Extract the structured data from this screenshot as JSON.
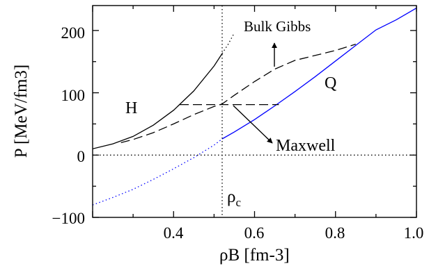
{
  "chart_data": {
    "type": "line",
    "xlabel": "ρB [fm-3]",
    "ylabel": "P [MeV/fm3]",
    "xlim": [
      0.2,
      1.0
    ],
    "ylim": [
      -100,
      240
    ],
    "x_ticks": [
      0.4,
      0.6,
      0.8,
      1.0
    ],
    "x_tick_labels": [
      "0.4",
      "0.6",
      "0.8",
      "1.0"
    ],
    "y_ticks": [
      -100,
      0,
      100,
      200
    ],
    "y_tick_labels": [
      "−100",
      "0",
      "100",
      "200"
    ],
    "grid": false,
    "series": [
      {
        "style": "solid",
        "color": "#000000",
        "x": [
          0.2,
          0.25,
          0.3,
          0.35,
          0.4,
          0.45,
          0.5,
          0.52
        ],
        "y": [
          10,
          18,
          30,
          48,
          72,
          103,
          143,
          163
        ]
      },
      {
        "style": "dotted",
        "color": "#000000",
        "x": [
          0.52,
          0.535,
          0.55
        ],
        "y": [
          163,
          178,
          196
        ]
      },
      {
        "style": "solid",
        "color": "#0000ff",
        "x": [
          0.52,
          0.55,
          0.6,
          0.65,
          0.7,
          0.75,
          0.8,
          0.85,
          0.9,
          0.95,
          1.0
        ],
        "y": [
          26,
          37,
          57,
          79,
          102,
          126,
          151,
          176,
          201,
          217,
          236
        ]
      },
      {
        "style": "dotted",
        "color": "#0000ff",
        "x": [
          0.2,
          0.25,
          0.3,
          0.35,
          0.4,
          0.45,
          0.5,
          0.52
        ],
        "y": [
          -80,
          -68,
          -55,
          -39,
          -22,
          -4,
          16,
          26
        ]
      },
      {
        "style": "dashed",
        "color": "#000000",
        "x": [
          0.27,
          0.3,
          0.35,
          0.4,
          0.45,
          0.5,
          0.52,
          0.55,
          0.6,
          0.65,
          0.7,
          0.75,
          0.8,
          0.85
        ],
        "y": [
          20,
          25,
          36,
          50,
          65,
          78,
          82,
          96,
          118,
          138,
          152,
          160,
          168,
          178
        ]
      },
      {
        "style": "dashed",
        "color": "#000000",
        "x": [
          0.415,
          0.66
        ],
        "y": [
          81,
          81
        ]
      }
    ],
    "reference_lines": [
      {
        "orientation": "vertical",
        "value": 0.52,
        "style": "dotted"
      },
      {
        "orientation": "horizontal",
        "value": 0,
        "style": "dotted"
      }
    ],
    "annotations": {
      "hadron": "H",
      "quark": "Q",
      "bulk_gibbs": "Bulk Gibbs",
      "maxwell": "Maxwell",
      "rho_c": "ρ",
      "rho_c_sub": "c"
    }
  }
}
